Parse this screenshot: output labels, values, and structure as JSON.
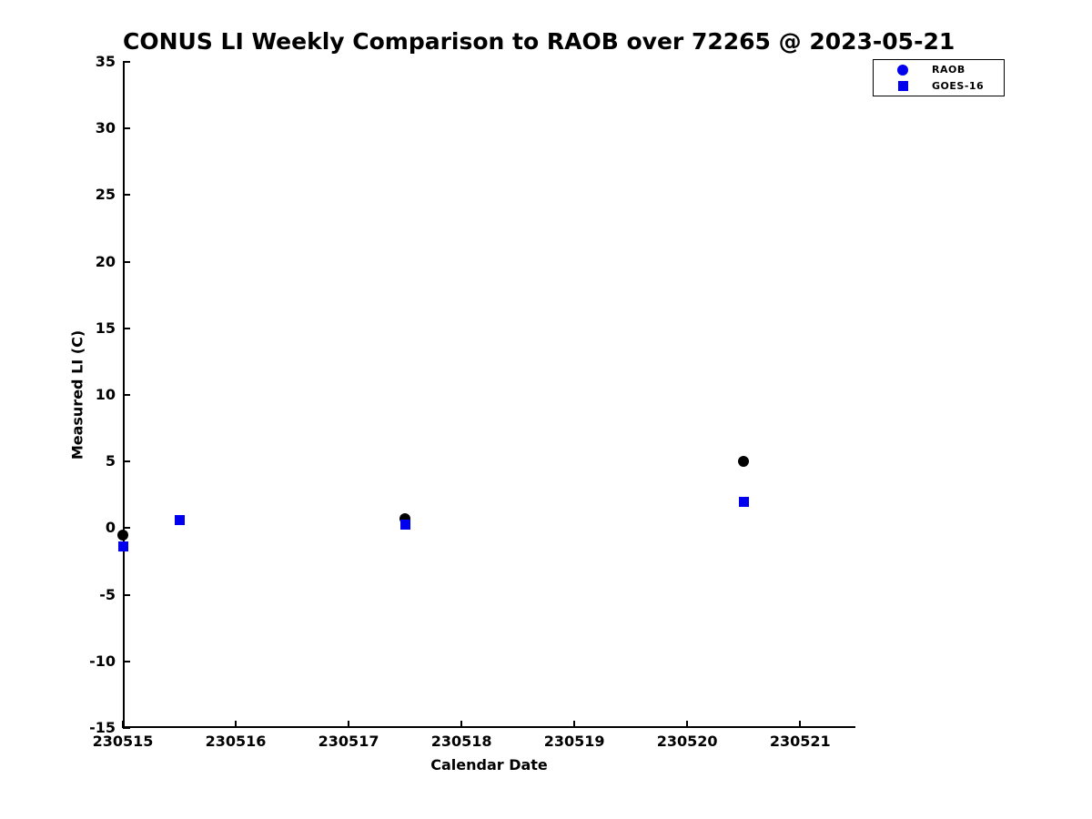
{
  "title": "CONUS LI Weekly Comparison to RAOB over 72265 @ 2023-05-21",
  "colors": {
    "background": "#ffffff",
    "axis": "#000000",
    "raob_plot_marker": "#000000",
    "raob_legend_marker": "#0000ee",
    "goes16_marker": "#0000ee"
  },
  "chart_data": {
    "type": "scatter",
    "title": "CONUS LI Weekly Comparison to RAOB over 72265 @ 2023-05-21",
    "xlabel": "Calendar Date",
    "ylabel": "Measured LI (C)",
    "xlim": [
      230515,
      230521.49
    ],
    "ylim": [
      -15,
      35
    ],
    "x_ticks": [
      230515,
      230516,
      230517,
      230518,
      230519,
      230520,
      230521
    ],
    "y_ticks": [
      35,
      30,
      25,
      20,
      15,
      10,
      5,
      0,
      -5,
      -10,
      -15
    ],
    "grid": false,
    "legend_position": "outside-top-right",
    "series": [
      {
        "name": "RAOB",
        "marker": "circle",
        "plot_color": "#000000",
        "legend_color": "#0000ee",
        "points": [
          {
            "x": 230515.0,
            "y": -0.5
          },
          {
            "x": 230517.5,
            "y": 0.7
          },
          {
            "x": 230520.5,
            "y": 5.0
          }
        ]
      },
      {
        "name": "GOES-16",
        "marker": "square",
        "plot_color": "#0000ee",
        "legend_color": "#0000ee",
        "points": [
          {
            "x": 230515.0,
            "y": -1.4
          },
          {
            "x": 230515.5,
            "y": 0.6
          },
          {
            "x": 230517.5,
            "y": 0.3
          },
          {
            "x": 230520.5,
            "y": 2.0
          }
        ]
      }
    ]
  }
}
